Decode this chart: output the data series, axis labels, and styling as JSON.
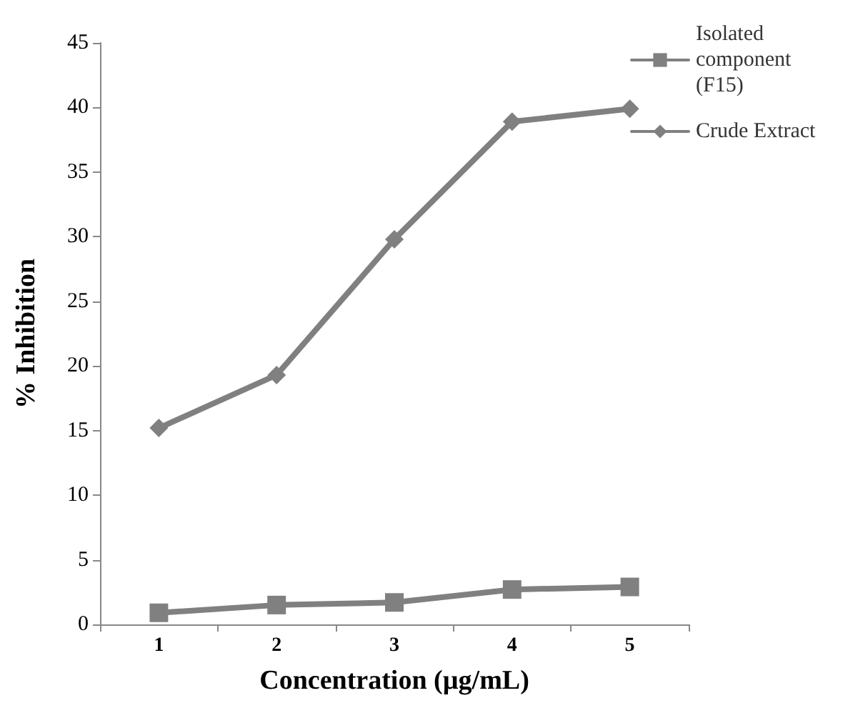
{
  "chart_data": {
    "type": "line",
    "xlabel": "Concentration (µg/mL)",
    "ylabel": "% Inhibition",
    "categories": [
      "1",
      "2",
      "3",
      "4",
      "5"
    ],
    "series": [
      {
        "name": "Isolated component (F15)",
        "color": "#808080",
        "marker": "square",
        "values": [
          0.9,
          1.5,
          1.7,
          2.7,
          2.9
        ]
      },
      {
        "name": "Crude Extract",
        "color": "#808080",
        "marker": "diamond",
        "values": [
          15.2,
          19.3,
          29.8,
          38.9,
          39.9
        ]
      }
    ],
    "ylim": [
      0,
      45
    ],
    "yticks": [
      0,
      5,
      10,
      15,
      20,
      25,
      30,
      35,
      40,
      45
    ],
    "grid": false,
    "legend": "top right",
    "line_style": "solid"
  }
}
